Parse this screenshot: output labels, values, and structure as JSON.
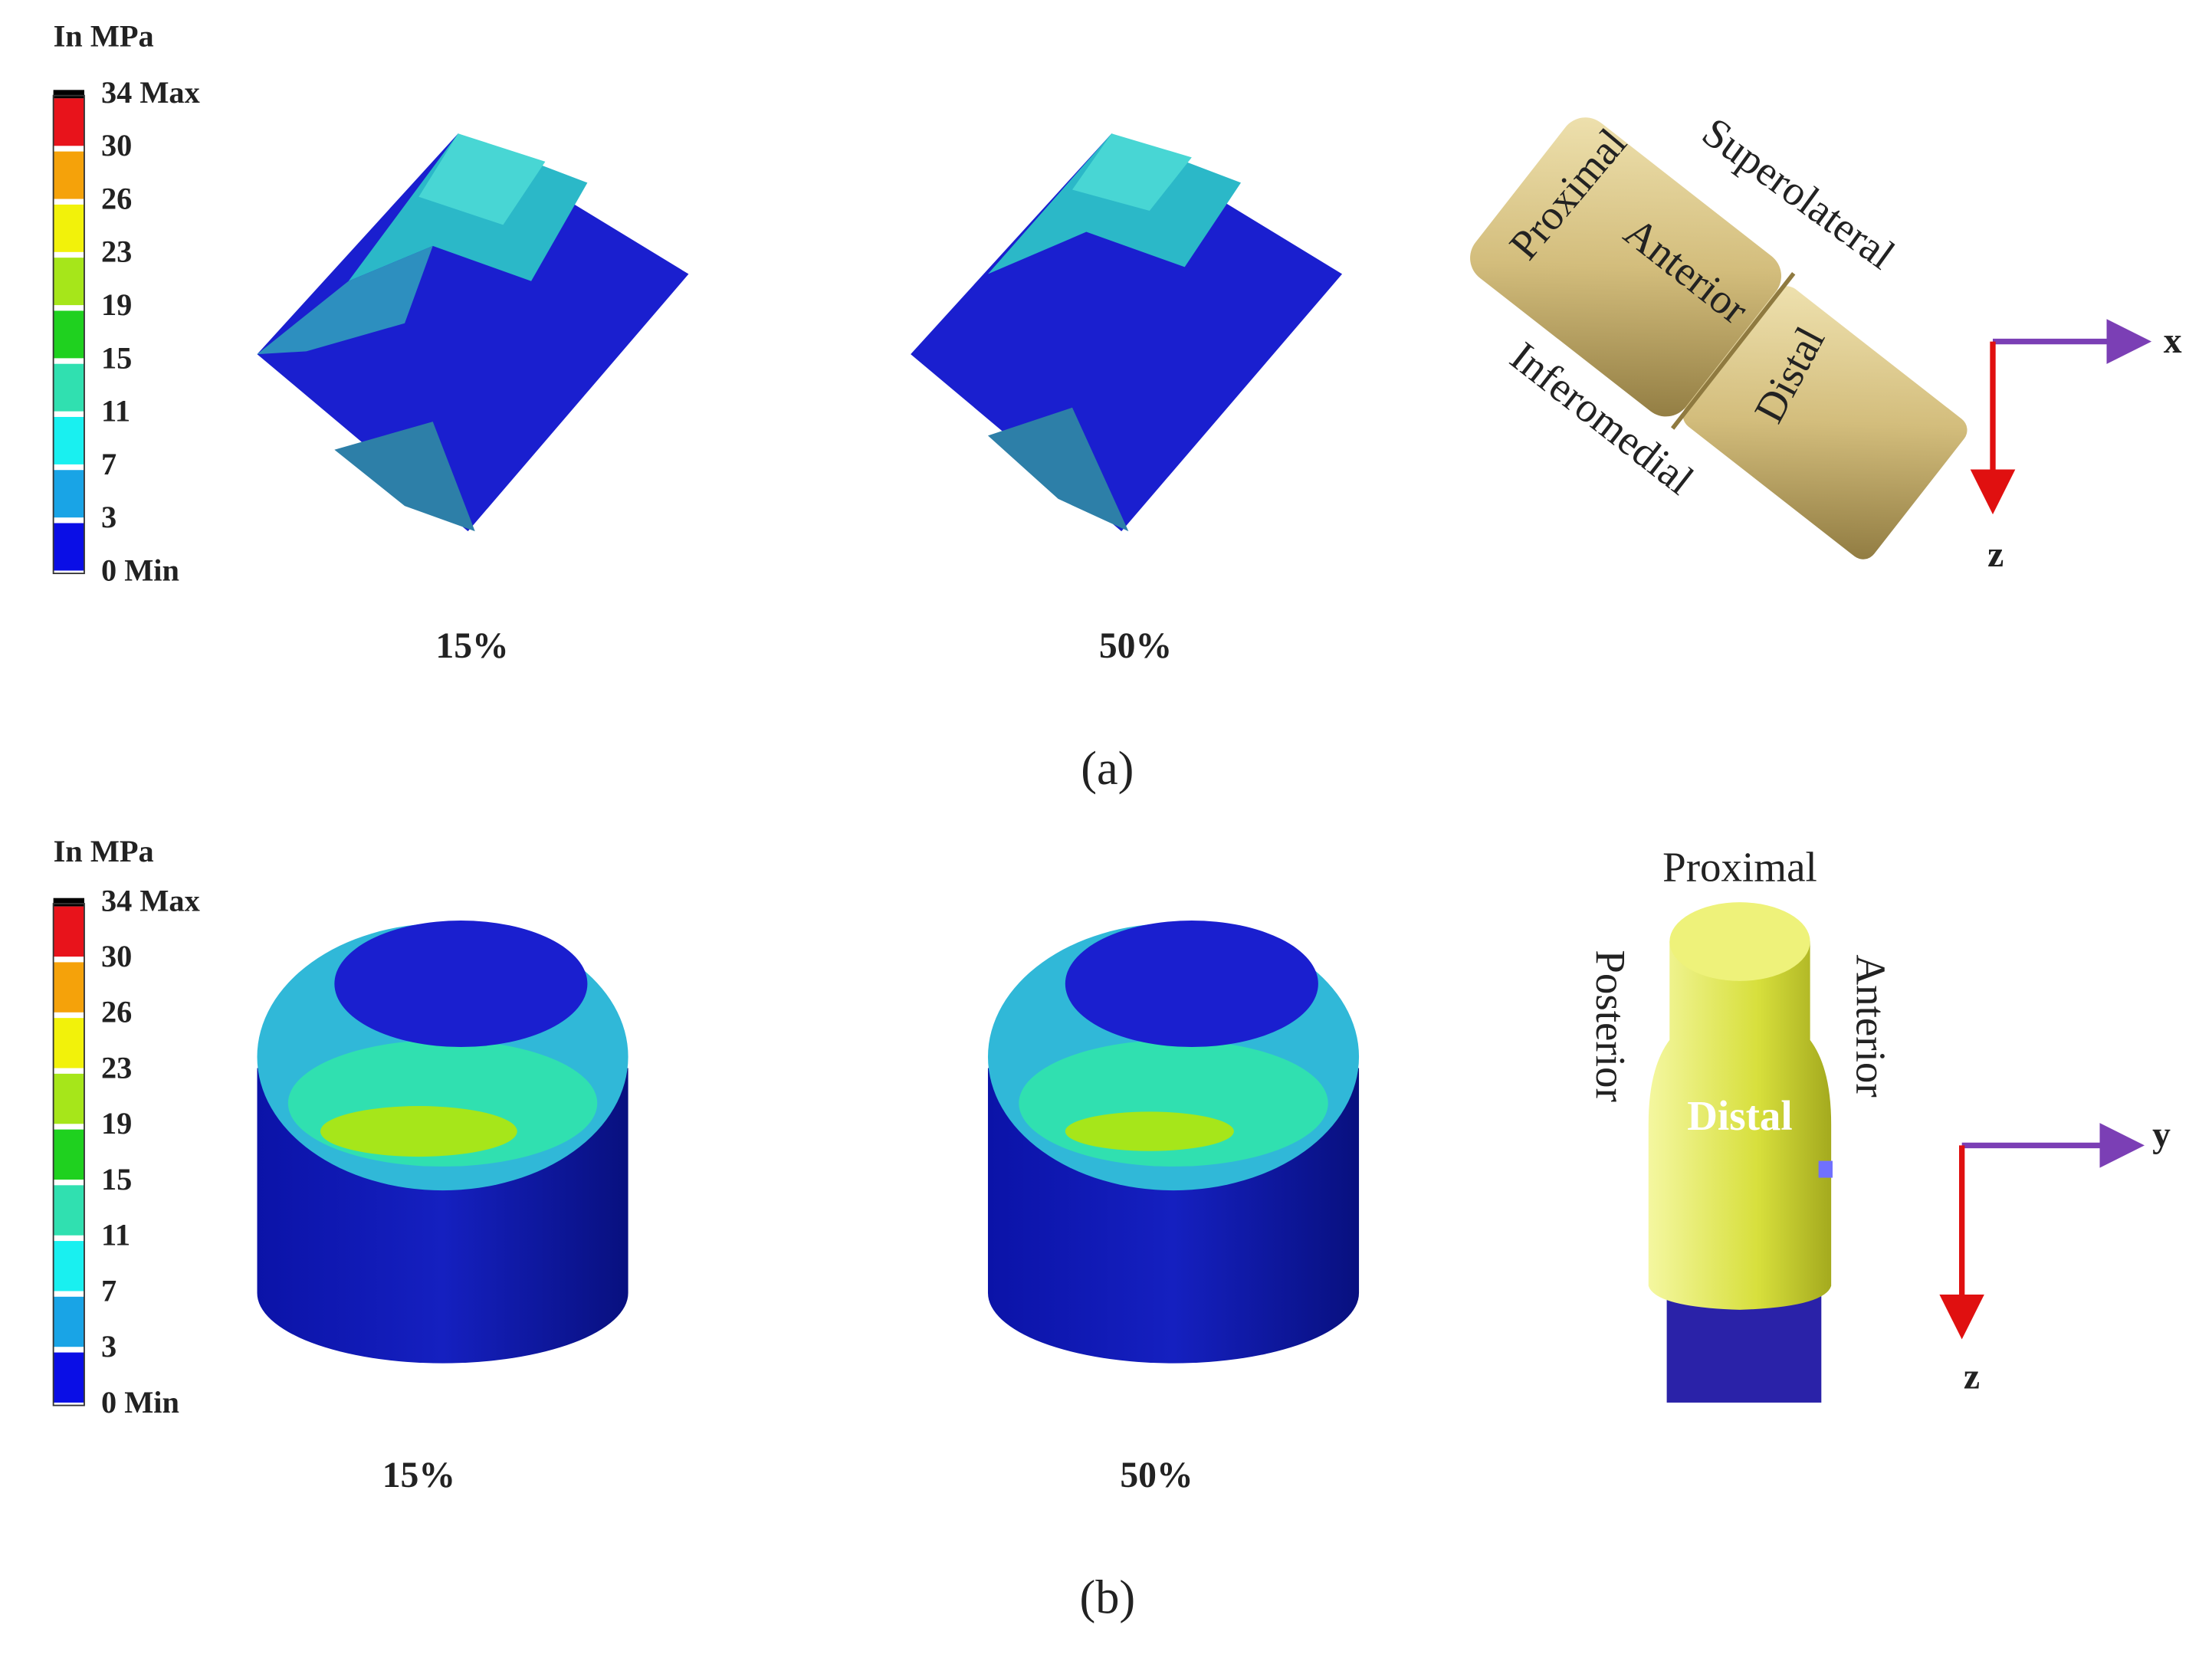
{
  "panels": [
    {
      "label": "(a)",
      "legend": {
        "title": "In MPa",
        "levels": [
          "34 Max",
          "30",
          "26",
          "23",
          "19",
          "15",
          "11",
          "7",
          "3",
          "0 Min"
        ],
        "colors": [
          "#e8131b",
          "#f5a20a",
          "#f2f20a",
          "#a6e61a",
          "#1fd11f",
          "#30e0b0",
          "#19f0f0",
          "#19a4e6",
          "#0a0ee6"
        ]
      },
      "captions": [
        "15%",
        "50%"
      ],
      "orientation": {
        "labels": [
          "Proximal",
          "Superolateral",
          "Anterior",
          "Distal",
          "Inferomedial"
        ],
        "axes": [
          "x",
          "z"
        ]
      }
    },
    {
      "label": "(b)",
      "legend": {
        "title": "In MPa",
        "levels": [
          "34 Max",
          "30",
          "26",
          "23",
          "19",
          "15",
          "11",
          "7",
          "3",
          "0 Min"
        ],
        "colors": [
          "#e8131b",
          "#f5a20a",
          "#f2f20a",
          "#a6e61a",
          "#1fd11f",
          "#30e0b0",
          "#19f0f0",
          "#19a4e6",
          "#0a0ee6"
        ]
      },
      "captions": [
        "15%",
        "50%"
      ],
      "orientation": {
        "labels": [
          "Proximal",
          "Posterior",
          "Anterior",
          "Distal"
        ],
        "axes": [
          "y",
          "z"
        ]
      }
    }
  ]
}
